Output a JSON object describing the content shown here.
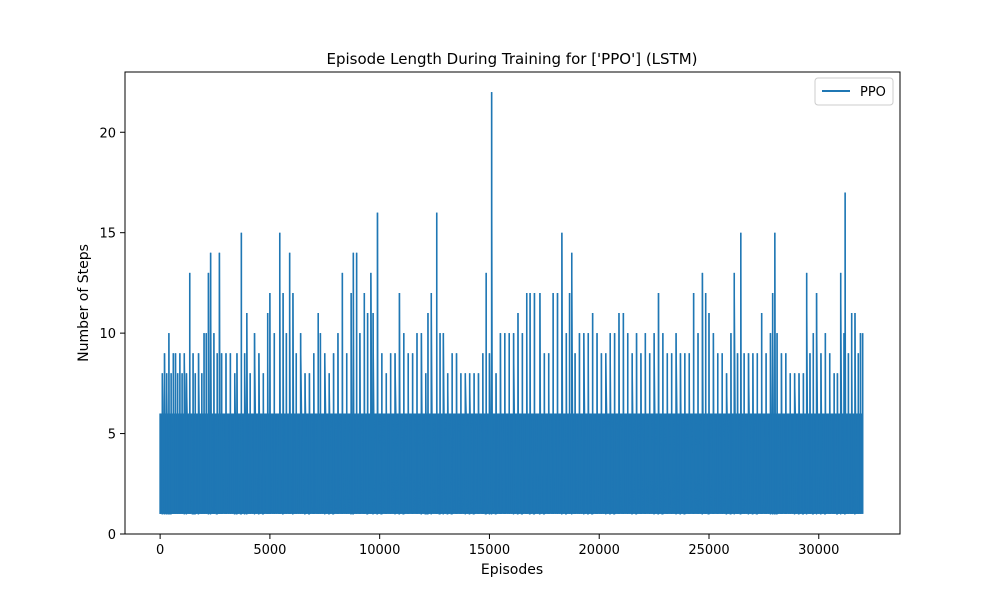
{
  "chart_data": {
    "type": "line",
    "title": "Episode Length During Training for ['PPO'] (LSTM)",
    "xlabel": "Episodes",
    "ylabel": "Number of Steps",
    "xlim": [
      -1600,
      33700
    ],
    "ylim": [
      0,
      23
    ],
    "xticks": [
      0,
      5000,
      10000,
      15000,
      20000,
      25000,
      30000
    ],
    "yticks": [
      0,
      5,
      10,
      15,
      20
    ],
    "grid": false,
    "legend": {
      "placement": "top-right",
      "entries": [
        "PPO"
      ]
    },
    "series": [
      {
        "name": "PPO",
        "color": "#1f77b4",
        "n_episodes": 32000,
        "baseline_min": 1,
        "typical_max": 6,
        "x_start": 0,
        "x_end": 32000,
        "peaks": [
          [
            0,
            6
          ],
          [
            100,
            8
          ],
          [
            200,
            9
          ],
          [
            300,
            8
          ],
          [
            400,
            10
          ],
          [
            500,
            8
          ],
          [
            600,
            9
          ],
          [
            700,
            9
          ],
          [
            800,
            8
          ],
          [
            900,
            9
          ],
          [
            1000,
            8
          ],
          [
            1100,
            9
          ],
          [
            1200,
            8
          ],
          [
            1350,
            13
          ],
          [
            1500,
            9
          ],
          [
            1600,
            8
          ],
          [
            1750,
            9
          ],
          [
            1900,
            8
          ],
          [
            2000,
            10
          ],
          [
            2100,
            10
          ],
          [
            2200,
            13
          ],
          [
            2300,
            14
          ],
          [
            2450,
            10
          ],
          [
            2600,
            9
          ],
          [
            2700,
            14
          ],
          [
            2800,
            9
          ],
          [
            3000,
            9
          ],
          [
            3200,
            9
          ],
          [
            3400,
            8
          ],
          [
            3500,
            9
          ],
          [
            3700,
            15
          ],
          [
            3850,
            9
          ],
          [
            3950,
            11
          ],
          [
            4100,
            8
          ],
          [
            4300,
            10
          ],
          [
            4500,
            9
          ],
          [
            4700,
            8
          ],
          [
            4900,
            11
          ],
          [
            5000,
            12
          ],
          [
            5200,
            10
          ],
          [
            5450,
            15
          ],
          [
            5600,
            12
          ],
          [
            5750,
            10
          ],
          [
            5900,
            14
          ],
          [
            6050,
            12
          ],
          [
            6200,
            9
          ],
          [
            6400,
            10
          ],
          [
            6600,
            8
          ],
          [
            6800,
            8
          ],
          [
            7000,
            9
          ],
          [
            7200,
            11
          ],
          [
            7300,
            10
          ],
          [
            7500,
            9
          ],
          [
            7700,
            8
          ],
          [
            7900,
            9
          ],
          [
            8100,
            10
          ],
          [
            8300,
            13
          ],
          [
            8500,
            9
          ],
          [
            8700,
            12
          ],
          [
            8800,
            14
          ],
          [
            8950,
            14
          ],
          [
            9100,
            10
          ],
          [
            9300,
            12
          ],
          [
            9450,
            11
          ],
          [
            9600,
            13
          ],
          [
            9700,
            11
          ],
          [
            9900,
            16
          ],
          [
            10100,
            9
          ],
          [
            10300,
            8
          ],
          [
            10500,
            9
          ],
          [
            10700,
            9
          ],
          [
            10900,
            12
          ],
          [
            11100,
            10
          ],
          [
            11300,
            9
          ],
          [
            11500,
            9
          ],
          [
            11700,
            10
          ],
          [
            11900,
            10
          ],
          [
            12100,
            8
          ],
          [
            12200,
            11
          ],
          [
            12350,
            12
          ],
          [
            12600,
            16
          ],
          [
            12750,
            10
          ],
          [
            12900,
            10
          ],
          [
            13100,
            8
          ],
          [
            13300,
            9
          ],
          [
            13500,
            9
          ],
          [
            13700,
            8
          ],
          [
            13900,
            8
          ],
          [
            14100,
            8
          ],
          [
            14300,
            8
          ],
          [
            14500,
            8
          ],
          [
            14700,
            9
          ],
          [
            14850,
            13
          ],
          [
            15000,
            9
          ],
          [
            15100,
            22
          ],
          [
            15300,
            8
          ],
          [
            15500,
            10
          ],
          [
            15700,
            10
          ],
          [
            15900,
            10
          ],
          [
            16100,
            10
          ],
          [
            16300,
            11
          ],
          [
            16500,
            10
          ],
          [
            16700,
            12
          ],
          [
            16850,
            12
          ],
          [
            17050,
            12
          ],
          [
            17300,
            12
          ],
          [
            17500,
            9
          ],
          [
            17700,
            9
          ],
          [
            17900,
            12
          ],
          [
            18100,
            12
          ],
          [
            18300,
            15
          ],
          [
            18500,
            10
          ],
          [
            18650,
            12
          ],
          [
            18750,
            14
          ],
          [
            18900,
            9
          ],
          [
            19100,
            10
          ],
          [
            19300,
            10
          ],
          [
            19500,
            10
          ],
          [
            19700,
            11
          ],
          [
            19900,
            10
          ],
          [
            20100,
            9
          ],
          [
            20300,
            9
          ],
          [
            20500,
            10
          ],
          [
            20700,
            10
          ],
          [
            20900,
            11
          ],
          [
            21100,
            11
          ],
          [
            21300,
            10
          ],
          [
            21500,
            9
          ],
          [
            21700,
            10
          ],
          [
            21900,
            9
          ],
          [
            22100,
            10
          ],
          [
            22300,
            9
          ],
          [
            22500,
            10
          ],
          [
            22700,
            12
          ],
          [
            22900,
            10
          ],
          [
            23100,
            9
          ],
          [
            23300,
            9
          ],
          [
            23500,
            10
          ],
          [
            23700,
            9
          ],
          [
            23900,
            9
          ],
          [
            24100,
            9
          ],
          [
            24300,
            12
          ],
          [
            24500,
            10
          ],
          [
            24700,
            13
          ],
          [
            24850,
            12
          ],
          [
            25000,
            11
          ],
          [
            25200,
            10
          ],
          [
            25400,
            9
          ],
          [
            25600,
            9
          ],
          [
            25800,
            8
          ],
          [
            26000,
            10
          ],
          [
            26150,
            13
          ],
          [
            26300,
            9
          ],
          [
            26450,
            15
          ],
          [
            26600,
            9
          ],
          [
            26800,
            9
          ],
          [
            27000,
            9
          ],
          [
            27200,
            9
          ],
          [
            27400,
            11
          ],
          [
            27600,
            9
          ],
          [
            27800,
            10
          ],
          [
            27900,
            12
          ],
          [
            28000,
            15
          ],
          [
            28100,
            10
          ],
          [
            28300,
            9
          ],
          [
            28500,
            9
          ],
          [
            28700,
            8
          ],
          [
            28900,
            8
          ],
          [
            29100,
            8
          ],
          [
            29300,
            8
          ],
          [
            29450,
            13
          ],
          [
            29600,
            9
          ],
          [
            29750,
            10
          ],
          [
            29900,
            12
          ],
          [
            30100,
            9
          ],
          [
            30300,
            10
          ],
          [
            30500,
            9
          ],
          [
            30700,
            8
          ],
          [
            30850,
            8
          ],
          [
            31000,
            13
          ],
          [
            31150,
            10
          ],
          [
            31200,
            17
          ],
          [
            31350,
            9
          ],
          [
            31500,
            11
          ],
          [
            31650,
            11
          ],
          [
            31800,
            9
          ],
          [
            31900,
            10
          ],
          [
            32000,
            10
          ]
        ]
      }
    ]
  }
}
